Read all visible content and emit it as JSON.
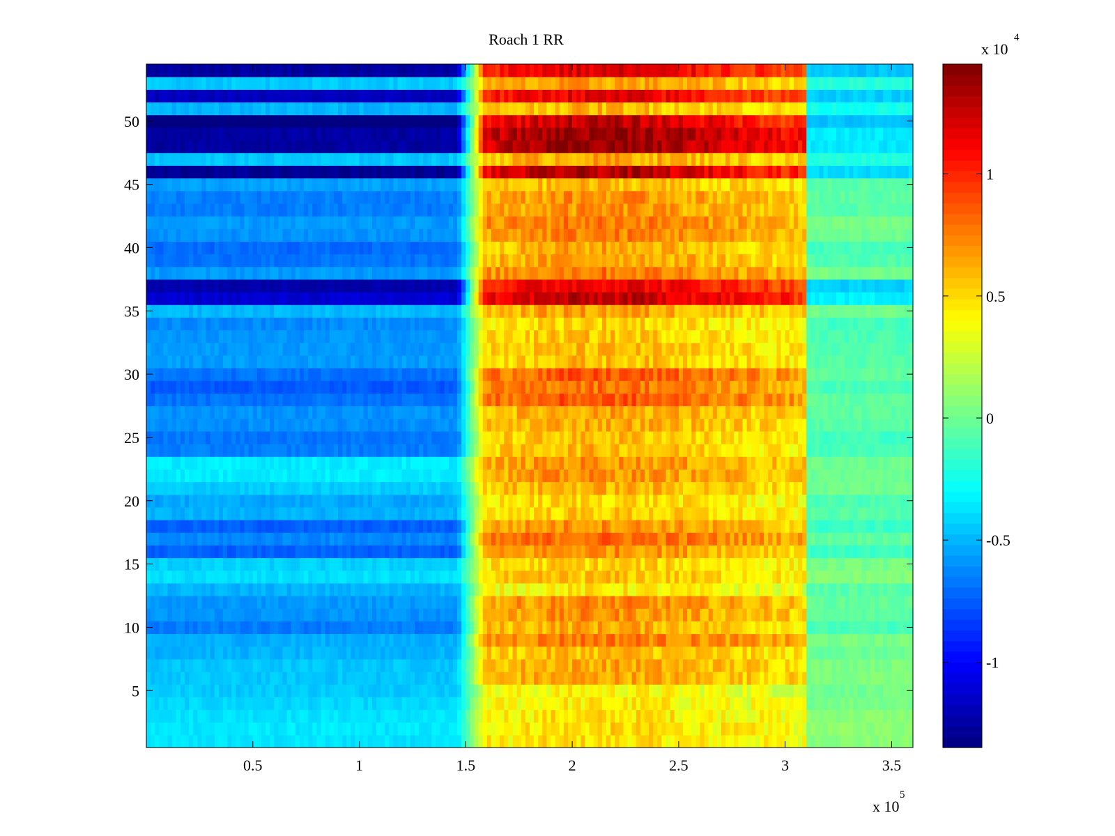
{
  "chart_data": {
    "type": "heatmap",
    "title": "Roach 1 RR",
    "xlabel": "",
    "ylabel": "",
    "x_range": [
      0,
      360000
    ],
    "y_range": [
      0.5,
      54.5
    ],
    "x_ticks": [
      {
        "value": 50000,
        "label": "0.5"
      },
      {
        "value": 100000,
        "label": "1"
      },
      {
        "value": 150000,
        "label": "1.5"
      },
      {
        "value": 200000,
        "label": "2"
      },
      {
        "value": 250000,
        "label": "2.5"
      },
      {
        "value": 300000,
        "label": "3"
      },
      {
        "value": 350000,
        "label": "3.5"
      }
    ],
    "x_exponent_label": "x 10",
    "x_exponent_power": "5",
    "y_ticks": [
      {
        "value": 5,
        "label": "5"
      },
      {
        "value": 10,
        "label": "10"
      },
      {
        "value": 15,
        "label": "15"
      },
      {
        "value": 20,
        "label": "20"
      },
      {
        "value": 25,
        "label": "25"
      },
      {
        "value": 30,
        "label": "30"
      },
      {
        "value": 35,
        "label": "35"
      },
      {
        "value": 40,
        "label": "40"
      },
      {
        "value": 45,
        "label": "45"
      },
      {
        "value": 50,
        "label": "50"
      }
    ],
    "colorbar": {
      "colormap": "jet",
      "range": [
        -13500,
        14500
      ],
      "ticks": [
        {
          "value": -10000,
          "label": "-1"
        },
        {
          "value": -5000,
          "label": "-0.5"
        },
        {
          "value": 0,
          "label": "0"
        },
        {
          "value": 5000,
          "label": "0.5"
        },
        {
          "value": 10000,
          "label": "1"
        }
      ],
      "exponent_label": "x 10",
      "exponent_power": "4"
    },
    "x_segments": [
      {
        "x_start": 0,
        "x_end": 146000,
        "phase": "baseline_low"
      },
      {
        "x_start": 146000,
        "x_end": 160000,
        "phase": "transition"
      },
      {
        "x_start": 160000,
        "x_end": 310000,
        "phase": "elevated_high"
      },
      {
        "x_start": 310000,
        "x_end": 360000,
        "phase": "return_near_zero"
      }
    ],
    "row_bands": [
      {
        "y_from": 1,
        "y_to": 5,
        "baseline": -4000,
        "elevated": 4500,
        "tail": 500
      },
      {
        "y_from": 6,
        "y_to": 8,
        "baseline": -5000,
        "elevated": 6000,
        "tail": 0
      },
      {
        "y_from": 9,
        "y_to": 12,
        "baseline": -6000,
        "elevated": 7000,
        "tail": -500
      },
      {
        "y_from": 13,
        "y_to": 15,
        "baseline": -4500,
        "elevated": 5000,
        "tail": 0
      },
      {
        "y_from": 16,
        "y_to": 18,
        "baseline": -7000,
        "elevated": 7500,
        "tail": -1000
      },
      {
        "y_from": 19,
        "y_to": 21,
        "baseline": -5000,
        "elevated": 5500,
        "tail": -500
      },
      {
        "y_from": 22,
        "y_to": 23,
        "baseline": -3500,
        "elevated": 7000,
        "tail": 0
      },
      {
        "y_from": 24,
        "y_to": 27,
        "baseline": -6000,
        "elevated": 6500,
        "tail": -500
      },
      {
        "y_from": 28,
        "y_to": 30,
        "baseline": -7500,
        "elevated": 8000,
        "tail": -1000
      },
      {
        "y_from": 31,
        "y_to": 35,
        "baseline": -5500,
        "elevated": 6000,
        "tail": -500
      },
      {
        "y_from": 36,
        "y_to": 37,
        "baseline": -12000,
        "elevated": 12000,
        "tail": -4000
      },
      {
        "y_from": 38,
        "y_to": 44,
        "baseline": -6500,
        "elevated": 7000,
        "tail": -500
      },
      {
        "y_from": 45,
        "y_to": 45,
        "baseline": -5500,
        "elevated": 6000,
        "tail": -500
      },
      {
        "y_from": 46,
        "y_to": 46,
        "baseline": -13000,
        "elevated": 13000,
        "tail": -4000
      },
      {
        "y_from": 47,
        "y_to": 47,
        "baseline": -5000,
        "elevated": 6000,
        "tail": -2500
      },
      {
        "y_from": 48,
        "y_to": 50,
        "baseline": -13000,
        "elevated": 13500,
        "tail": -4000
      },
      {
        "y_from": 51,
        "y_to": 51,
        "baseline": -5000,
        "elevated": 6000,
        "tail": -2500
      },
      {
        "y_from": 52,
        "y_to": 52,
        "baseline": -11500,
        "elevated": 12000,
        "tail": -4000
      },
      {
        "y_from": 53,
        "y_to": 53,
        "baseline": -5000,
        "elevated": 6000,
        "tail": -2500
      },
      {
        "y_from": 54,
        "y_to": 54,
        "baseline": -12000,
        "elevated": 12500,
        "tail": -4000
      }
    ],
    "grid": false,
    "legend": "none"
  }
}
